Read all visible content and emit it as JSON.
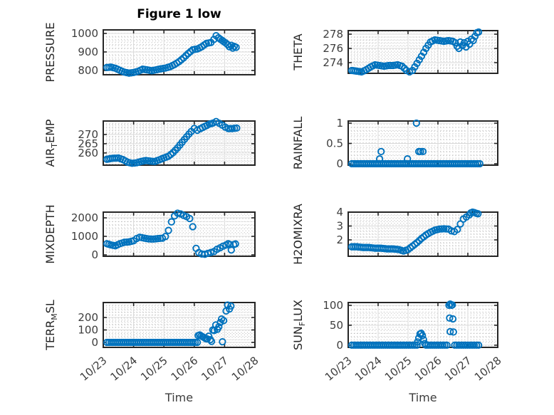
{
  "figure": {
    "title": "Figure 1 low",
    "xlabel": "Time",
    "marker_color": "#0072BD",
    "axis_color": "#262626",
    "tick_text_color": "#3d3d3d",
    "ylabel_color": "#262626",
    "grid_color": "#d9d9d9",
    "minor_grid_color": "#b5b5b5",
    "background": "#ffffff"
  },
  "x_axis": {
    "tick_labels": [
      "10/23",
      "10/24",
      "10/25",
      "10/26",
      "10/27",
      "10/28"
    ],
    "ticks": [
      0,
      1,
      2,
      3,
      4,
      5
    ],
    "lim": [
      0,
      5
    ],
    "x_units": "days from 10/23",
    "label": "Time"
  },
  "chart_data": [
    {
      "name": "pressure",
      "type": "scatter",
      "ylabel_parts": [
        "PRESSURE"
      ],
      "ytick_labels": [
        "800",
        "900",
        "1000"
      ],
      "yticks": [
        800,
        900,
        1000
      ],
      "ylim": [
        777,
        1019
      ],
      "show_x_ticks": false,
      "runs": [
        {
          "x": [
            0.12,
            0.25,
            0.4,
            0.55,
            0.7,
            0.85,
            1.0,
            1.15,
            1.3,
            1.45,
            1.6,
            1.75,
            1.9,
            2.05,
            2.2,
            2.35,
            2.5,
            2.65,
            2.8,
            2.95,
            3.1,
            3.25,
            3.4,
            3.55,
            3.65,
            3.72,
            3.8,
            3.92
          ],
          "y": [
            816,
            818,
            812,
            801,
            791,
            786,
            789,
            796,
            807,
            803,
            799,
            804,
            809,
            813,
            820,
            832,
            848,
            868,
            892,
            912,
            916,
            928,
            946,
            951,
            968,
            988,
            976,
            962
          ]
        }
      ],
      "points": [
        [
          3.98,
          955
        ],
        [
          4.04,
          948
        ],
        [
          4.1,
          940
        ],
        [
          4.16,
          928
        ],
        [
          4.22,
          936
        ],
        [
          4.27,
          921
        ],
        [
          4.32,
          930
        ],
        [
          4.38,
          925
        ]
      ]
    },
    {
      "name": "theta",
      "type": "scatter",
      "ylabel_parts": [
        "THETA"
      ],
      "ytick_labels": [
        "274",
        "276",
        "278"
      ],
      "yticks": [
        274,
        276,
        278
      ],
      "ylim": [
        272.5,
        278.5
      ],
      "show_x_ticks": false,
      "runs": [
        {
          "x": [
            0.12,
            0.3,
            0.45,
            0.6,
            0.75,
            0.9,
            1.05,
            1.2,
            1.35,
            1.5,
            1.65,
            1.8,
            1.95,
            2.05,
            2.15,
            2.3,
            2.45,
            2.6,
            2.75,
            2.9,
            3.05,
            3.2,
            3.35,
            3.5
          ],
          "y": [
            272.9,
            272.8,
            272.7,
            273.0,
            273.4,
            273.7,
            273.6,
            273.5,
            273.6,
            273.6,
            273.7,
            273.5,
            272.9,
            272.7,
            272.9,
            273.9,
            274.9,
            276.0,
            276.9,
            277.2,
            277.1,
            277.0,
            277.1,
            277.0
          ]
        }
      ],
      "points": [
        [
          3.58,
          276.8
        ],
        [
          3.64,
          276.3
        ],
        [
          3.7,
          276.0
        ],
        [
          3.75,
          276.9
        ],
        [
          3.82,
          276.4
        ],
        [
          3.88,
          276.8
        ],
        [
          3.94,
          276.2
        ],
        [
          4.0,
          277.0
        ],
        [
          4.06,
          276.6
        ],
        [
          4.12,
          277.3
        ],
        [
          4.18,
          277.1
        ],
        [
          4.24,
          277.7
        ],
        [
          4.3,
          278.2
        ],
        [
          4.36,
          278.3
        ]
      ]
    },
    {
      "name": "air-temp",
      "type": "scatter",
      "ylabel_parts": [
        "AIR",
        {
          "sub": "T"
        },
        "EMP"
      ],
      "ytick_labels": [
        "260",
        "265",
        "270"
      ],
      "yticks": [
        260,
        265,
        270
      ],
      "ylim": [
        253.4,
        277.3
      ],
      "show_x_ticks": false,
      "runs": [
        {
          "x": [
            0.12,
            0.3,
            0.5,
            0.65,
            0.8,
            0.95,
            1.1,
            1.25,
            1.4,
            1.55,
            1.7,
            1.85,
            2.0,
            2.15,
            2.3,
            2.45,
            2.6,
            2.75,
            2.9,
            3.0,
            3.1,
            3.2,
            3.35,
            3.5,
            3.62,
            3.72,
            3.82,
            3.92,
            4.02,
            4.12,
            4.25,
            4.4
          ],
          "y": [
            256.6,
            257.1,
            257.3,
            256.4,
            255.0,
            254.4,
            254.7,
            255.4,
            255.9,
            255.6,
            255.4,
            256.3,
            257.3,
            258.2,
            260.2,
            262.8,
            265.8,
            268.8,
            271.6,
            273.3,
            272.3,
            273.1,
            274.4,
            275.6,
            276.2,
            277.0,
            276.1,
            275.1,
            274.0,
            273.2,
            273.2,
            273.5
          ]
        }
      ],
      "points": []
    },
    {
      "name": "rainfall",
      "type": "scatter",
      "ylabel_parts": [
        "RAINFALL"
      ],
      "ytick_labels": [
        "0",
        "0.5",
        "1"
      ],
      "yticks": [
        0,
        0.5,
        1
      ],
      "ylim": [
        -0.035,
        1.053
      ],
      "show_x_ticks": false,
      "runs": [
        {
          "x": [
            0.12,
            4.4
          ],
          "y": [
            0,
            0
          ]
        }
      ],
      "points": [
        [
          1.05,
          0.12
        ],
        [
          1.1,
          0.3
        ],
        [
          1.98,
          0.12
        ],
        [
          2.28,
          1.0
        ],
        [
          2.36,
          0.3
        ],
        [
          2.42,
          0.3
        ],
        [
          2.5,
          0.3
        ]
      ]
    },
    {
      "name": "mixdepth",
      "type": "scatter",
      "ylabel_parts": [
        "MIXDEPTH"
      ],
      "ytick_labels": [
        "0",
        "1000",
        "2000"
      ],
      "yticks": [
        0,
        1000,
        2000
      ],
      "ylim": [
        -77,
        2308
      ],
      "show_x_ticks": false,
      "runs": [
        {
          "x": [
            0.12,
            0.25,
            0.4,
            0.55,
            0.7,
            0.85,
            1.0,
            1.1,
            1.2,
            1.35,
            1.5,
            1.65,
            1.8,
            1.95,
            2.05,
            2.15,
            2.25,
            2.35,
            2.45,
            2.55,
            2.65,
            2.75,
            2.85,
            2.95
          ],
          "y": [
            600,
            540,
            490,
            600,
            680,
            700,
            760,
            880,
            950,
            905,
            860,
            850,
            880,
            900,
            990,
            1320,
            1780,
            2100,
            2250,
            2210,
            2130,
            2060,
            1960,
            1520
          ]
        },
        {
          "x": [
            3.15,
            3.25,
            3.35,
            3.45,
            3.55,
            3.65,
            3.75,
            3.85,
            3.95,
            4.05
          ],
          "y": [
            120,
            45,
            30,
            80,
            130,
            180,
            300,
            380,
            470,
            530
          ]
        }
      ],
      "points": [
        [
          3.06,
          350
        ],
        [
          4.12,
          600
        ],
        [
          4.18,
          555
        ],
        [
          4.22,
          260
        ],
        [
          4.3,
          555
        ],
        [
          4.36,
          590
        ]
      ]
    },
    {
      "name": "h2omixra",
      "type": "scatter",
      "ylabel_parts": [
        "H2OMIXRA"
      ],
      "ytick_labels": [
        "2",
        "3",
        "4"
      ],
      "yticks": [
        2,
        3,
        4
      ],
      "ylim": [
        0.82,
        4.0
      ],
      "show_x_ticks": false,
      "runs": [
        {
          "x": [
            0.12,
            0.3,
            0.5,
            0.7,
            0.9,
            1.1,
            1.3,
            1.5,
            1.7,
            1.85,
            2.0,
            2.15,
            2.3,
            2.45,
            2.6,
            2.75,
            2.9,
            3.05,
            3.2,
            3.35,
            3.45,
            3.55,
            3.65,
            3.75,
            3.85,
            3.95,
            4.05
          ],
          "y": [
            1.5,
            1.5,
            1.45,
            1.45,
            1.4,
            1.4,
            1.35,
            1.35,
            1.3,
            1.2,
            1.3,
            1.55,
            1.8,
            2.1,
            2.35,
            2.55,
            2.7,
            2.78,
            2.8,
            2.78,
            2.65,
            2.6,
            2.75,
            3.15,
            3.5,
            3.65,
            3.8
          ]
        }
      ],
      "points": [
        [
          4.1,
          3.95
        ],
        [
          4.16,
          4.0
        ],
        [
          4.22,
          3.97
        ],
        [
          4.28,
          3.92
        ],
        [
          4.34,
          3.88
        ]
      ]
    },
    {
      "name": "terr-msl",
      "type": "scatter",
      "ylabel_parts": [
        "TERR",
        {
          "sub": "M"
        },
        "SL"
      ],
      "ytick_labels": [
        "0",
        "100",
        "200"
      ],
      "yticks": [
        0,
        100,
        200
      ],
      "ylim": [
        -40,
        320
      ],
      "show_x_ticks": true,
      "runs": [
        {
          "x": [
            0.12,
            3.1
          ],
          "y": [
            0,
            0
          ]
        }
      ],
      "points": [
        [
          3.13,
          55
        ],
        [
          3.18,
          60
        ],
        [
          3.23,
          52
        ],
        [
          3.28,
          45
        ],
        [
          3.33,
          38
        ],
        [
          3.38,
          30
        ],
        [
          3.43,
          28
        ],
        [
          3.48,
          50
        ],
        [
          3.53,
          22
        ],
        [
          3.57,
          8
        ],
        [
          3.61,
          100
        ],
        [
          3.66,
          95
        ],
        [
          3.71,
          140
        ],
        [
          3.76,
          105
        ],
        [
          3.81,
          125
        ],
        [
          3.86,
          160
        ],
        [
          3.9,
          188
        ],
        [
          3.93,
          5
        ],
        [
          3.97,
          175
        ],
        [
          4.05,
          252
        ],
        [
          4.1,
          300
        ],
        [
          4.16,
          268
        ],
        [
          4.21,
          292
        ]
      ]
    },
    {
      "name": "sun-flux",
      "type": "scatter",
      "ylabel_parts": [
        "SUN",
        {
          "sub": "F"
        },
        "LUX"
      ],
      "ytick_labels": [
        "0",
        "50",
        "100"
      ],
      "yticks": [
        0,
        50,
        100
      ],
      "ylim": [
        -5.5,
        107
      ],
      "show_x_ticks": true,
      "runs": [
        {
          "x": [
            0.12,
            2.3
          ],
          "y": [
            0,
            0
          ]
        },
        {
          "x": [
            2.32,
            2.36,
            2.4,
            2.44,
            2.48,
            2.52,
            2.56
          ],
          "y": [
            8,
            18,
            28,
            30,
            24,
            14,
            4
          ]
        },
        {
          "x": [
            2.6,
            3.3
          ],
          "y": [
            0,
            0
          ]
        },
        {
          "x": [
            3.56,
            4.36
          ],
          "y": [
            0,
            0
          ]
        }
      ],
      "points": [
        [
          3.37,
          100
        ],
        [
          3.41,
          103
        ],
        [
          3.45,
          100
        ],
        [
          3.48,
          101
        ],
        [
          3.39,
          68
        ],
        [
          3.5,
          66
        ],
        [
          3.41,
          34
        ],
        [
          3.52,
          33
        ]
      ]
    }
  ]
}
